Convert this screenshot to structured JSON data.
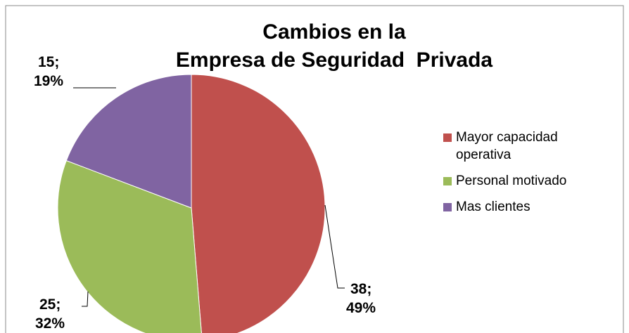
{
  "chart_data": {
    "type": "pie",
    "title": [
      "Cambios en la",
      "Empresa de Seguridad  Privada"
    ],
    "categories": [
      "Mayor capacidad operativa",
      "Personal motivado",
      "Mas clientes"
    ],
    "values": [
      38,
      25,
      15
    ],
    "value_labels": [
      "38; 49%",
      "25; 32%",
      "15; 19%"
    ],
    "colors": [
      "#c0504d",
      "#9bbb59",
      "#8064a2"
    ],
    "legend": "right"
  }
}
